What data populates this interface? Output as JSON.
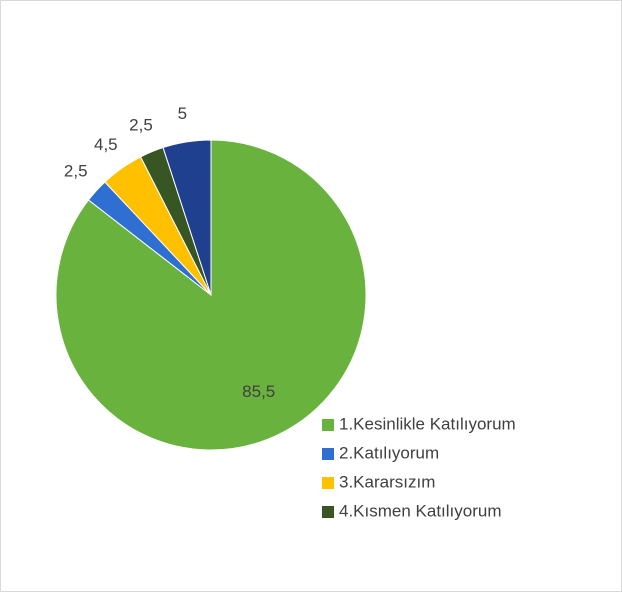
{
  "chart_data": {
    "type": "pie",
    "categories": [
      "1.Kesinlikle Katılıyorum",
      "2.Katılıyorum",
      "3.Kararsızım",
      "4.Kısmen Katılıyorum",
      null
    ],
    "values": [
      85.5,
      2.5,
      4.5,
      2.5,
      5
    ],
    "value_labels": [
      "85,5",
      "2,5",
      "4,5",
      "2,5",
      "5"
    ],
    "colors": [
      "#6ab23e",
      "#2e6fd1",
      "#ffc000",
      "#375623",
      "#1f3f8f"
    ],
    "legend": "right"
  }
}
